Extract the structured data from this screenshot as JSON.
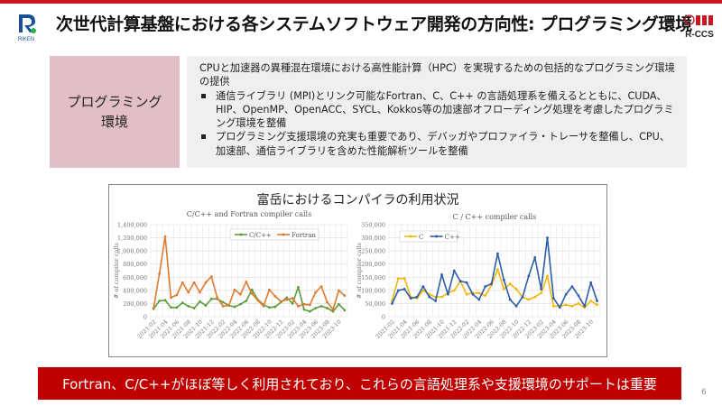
{
  "header": {
    "title": "次世代計算基盤における各システムソフトウェア開発の方向性: プログラミング環境",
    "logo_left": "RIKEN",
    "logo_right": "R-CCS",
    "accent_color": "#c8161d"
  },
  "section": {
    "label_line1": "プログラミング",
    "label_line2": "環境",
    "intro": "CPUと加速器の異種混在環境における高性能計算（HPC）を実現するための包括的なプログラミング環境の提供",
    "bullets": [
      "通信ライブラリ (MPI)とリンク可能なFortran、C、C++ の言語処理系を備えるとともに、CUDA、HIP、OpenMP、OpenACC、SYCL、Kokkos等の加速部オフローディング処理を考慮したプログラミング環境を整備",
      "プログラミング支援環境の充実も重要であり、デバッガやプロファイラ・トレーサを整備し、CPU、加速部、通信ライブラリを含めた性能解析ツールを整備"
    ]
  },
  "chart_panel": {
    "title": "富岳におけるコンパイラの利用状況"
  },
  "chart_data": [
    {
      "type": "line",
      "title": "C/C++ and Fortran compiler calls",
      "xlabel": "",
      "ylabel": "# of compiler calls",
      "ylim": [
        0,
        1400000
      ],
      "yticks": [
        "0",
        "200,000",
        "400,000",
        "600,000",
        "800,000",
        "1,000,000",
        "1,200,000",
        "1,400,000"
      ],
      "xtick_labels": [
        "2021-02",
        "2021-04",
        "2021-06",
        "2021-08",
        "2021-10",
        "2021-12",
        "2022-02",
        "2022-04",
        "2022-06",
        "2022-08",
        "2022-10",
        "2022-12",
        "2023-02",
        "2023-04",
        "2023-06",
        "2023-08",
        "2023-10"
      ],
      "grid": true,
      "legend_position": "top-right",
      "x": [
        "2021-02",
        "2021-03",
        "2021-04",
        "2021-05",
        "2021-06",
        "2021-07",
        "2021-08",
        "2021-09",
        "2021-10",
        "2021-11",
        "2021-12",
        "2022-01",
        "2022-02",
        "2022-03",
        "2022-04",
        "2022-05",
        "2022-06",
        "2022-07",
        "2022-08",
        "2022-09",
        "2022-10",
        "2022-11",
        "2022-12",
        "2023-01",
        "2023-02",
        "2023-03",
        "2023-04",
        "2023-05",
        "2023-06",
        "2023-07",
        "2023-08",
        "2023-09",
        "2023-10",
        "2023-11"
      ],
      "series": [
        {
          "name": "C/C++",
          "color": "#5b9e3a",
          "values": [
            120000,
            240000,
            250000,
            140000,
            140000,
            210000,
            160000,
            130000,
            230000,
            170000,
            270000,
            270000,
            220000,
            170000,
            150000,
            190000,
            240000,
            410000,
            260000,
            180000,
            140000,
            150000,
            220000,
            290000,
            200000,
            450000,
            110000,
            80000,
            130000,
            160000,
            130000,
            80000,
            190000,
            100000
          ]
        },
        {
          "name": "Fortran",
          "color": "#e07a2e",
          "values": [
            130000,
            650000,
            1220000,
            290000,
            330000,
            520000,
            370000,
            520000,
            370000,
            520000,
            610000,
            290000,
            160000,
            170000,
            410000,
            340000,
            530000,
            350000,
            250000,
            160000,
            410000,
            310000,
            230000,
            260000,
            280000,
            160000,
            190000,
            180000,
            370000,
            460000,
            220000,
            110000,
            400000,
            320000
          ]
        }
      ]
    },
    {
      "type": "line",
      "title": "C / C++ compiler calls",
      "xlabel": "",
      "ylabel": "# of compiler calls",
      "ylim": [
        0,
        350000
      ],
      "yticks": [
        "0",
        "50,000",
        "100,000",
        "150,000",
        "200,000",
        "250,000",
        "300,000",
        "350,000"
      ],
      "xtick_labels": [
        "2021-02",
        "2021-04",
        "2021-06",
        "2021-08",
        "2021-10",
        "2021-12",
        "2022-02",
        "2022-04",
        "2022-06",
        "2022-08",
        "2022-10",
        "2022-12",
        "2023-02",
        "2023-04",
        "2023-06",
        "2023-08",
        "2023-10"
      ],
      "grid": true,
      "legend_position": "top-left",
      "x": [
        "2021-02",
        "2021-03",
        "2021-04",
        "2021-05",
        "2021-06",
        "2021-07",
        "2021-08",
        "2021-09",
        "2021-10",
        "2021-11",
        "2021-12",
        "2022-01",
        "2022-02",
        "2022-03",
        "2022-04",
        "2022-05",
        "2022-06",
        "2022-07",
        "2022-08",
        "2022-09",
        "2022-10",
        "2022-11",
        "2022-12",
        "2023-01",
        "2023-02",
        "2023-03",
        "2023-04",
        "2023-05",
        "2023-06",
        "2023-07",
        "2023-08",
        "2023-09",
        "2023-10",
        "2023-11"
      ],
      "series": [
        {
          "name": "C",
          "color": "#f2b70f",
          "values": [
            60000,
            145000,
            145000,
            75000,
            70000,
            100000,
            85000,
            75000,
            75000,
            90000,
            100000,
            135000,
            85000,
            90000,
            90000,
            80000,
            120000,
            180000,
            105000,
            125000,
            105000,
            75000,
            65000,
            75000,
            90000,
            155000,
            40000,
            40000,
            45000,
            40000,
            50000,
            35000,
            60000,
            45000
          ]
        },
        {
          "name": "C++",
          "color": "#2e5da8",
          "values": [
            50000,
            100000,
            105000,
            70000,
            75000,
            115000,
            75000,
            60000,
            160000,
            85000,
            175000,
            135000,
            130000,
            85000,
            65000,
            115000,
            125000,
            240000,
            140000,
            65000,
            40000,
            75000,
            155000,
            225000,
            105000,
            300000,
            70000,
            35000,
            85000,
            115000,
            80000,
            40000,
            130000,
            60000
          ]
        }
      ]
    }
  ],
  "footer": {
    "banner_text": "Fortran、C/C++がほぼ等しく利用されており、これらの言語処理系や支援環境のサポートは重要",
    "banner_color": "#c00000",
    "page_number": "6"
  }
}
